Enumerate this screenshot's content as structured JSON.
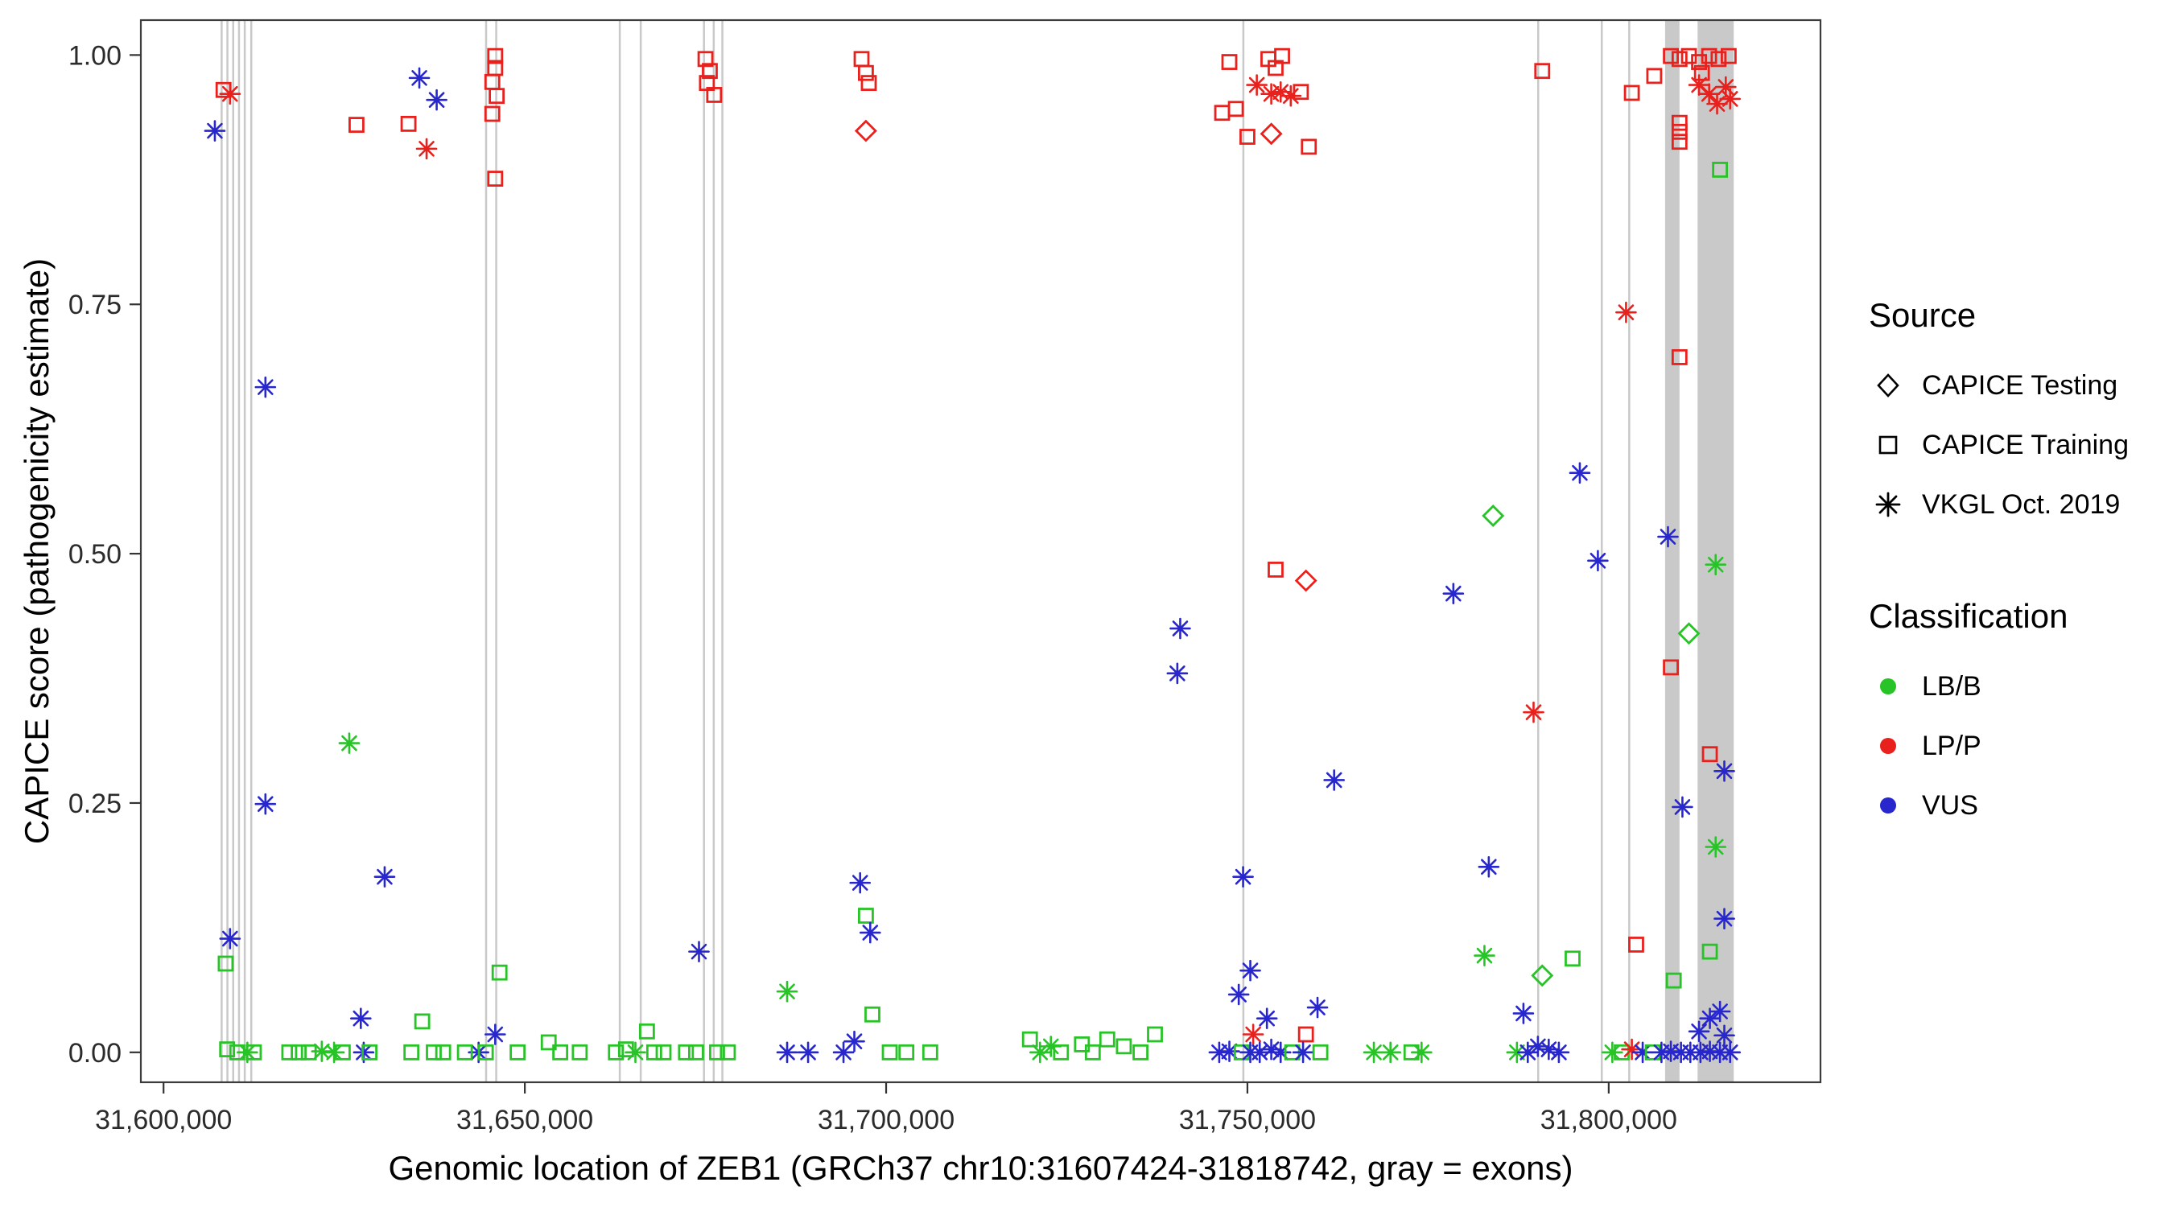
{
  "figure": {
    "xlabel": "Genomic location of ZEB1 (GRCh37 chr10:31607424-31818742, gray = exons)",
    "ylabel": "CAPICE score (pathogenicity estimate)"
  },
  "legend": {
    "source": {
      "title": "Source",
      "items": [
        {
          "label": "CAPICE Testing",
          "marker": "diamond"
        },
        {
          "label": "CAPICE Training",
          "marker": "square"
        },
        {
          "label": "VKGL Oct. 2019",
          "marker": "asterisk"
        }
      ]
    },
    "classification": {
      "title": "Classification",
      "items": [
        {
          "label": "LB/B",
          "color": "#27c327"
        },
        {
          "label": "LP/P",
          "color": "#e8211d"
        },
        {
          "label": "VUS",
          "color": "#2727cd"
        }
      ]
    }
  },
  "chart_data": {
    "type": "scatter",
    "title": "",
    "xlabel": "Genomic location of ZEB1 (GRCh37 chr10:31607424-31818742, gray = exons)",
    "ylabel": "CAPICE score (pathogenicity estimate)",
    "xlim": [
      31596858,
      31829308
    ],
    "ylim": [
      -0.03,
      1.035
    ],
    "grid": false,
    "legend_position": "right",
    "x_ticks": [
      {
        "value": 31600000,
        "label": "31,600,000"
      },
      {
        "value": 31650000,
        "label": "31,650,000"
      },
      {
        "value": 31700000,
        "label": "31,700,000"
      },
      {
        "value": 31750000,
        "label": "31,750,000"
      },
      {
        "value": 31800000,
        "label": "31,800,000"
      }
    ],
    "y_ticks": [
      {
        "value": 0.0,
        "label": "0.00"
      },
      {
        "value": 0.25,
        "label": "0.25"
      },
      {
        "value": 0.5,
        "label": "0.50"
      },
      {
        "value": 0.75,
        "label": "0.75"
      },
      {
        "value": 1.0,
        "label": "1.00"
      }
    ],
    "exon_color": "#bcbcbc",
    "exons": [
      [
        31607900,
        31608060
      ],
      [
        31608700,
        31608860
      ],
      [
        31609500,
        31609660
      ],
      [
        31610300,
        31610460
      ],
      [
        31611100,
        31611260
      ],
      [
        31612000,
        31612160
      ],
      [
        31644500,
        31644660
      ],
      [
        31645900,
        31646060
      ],
      [
        31663000,
        31663160
      ],
      [
        31665900,
        31666060
      ],
      [
        31674650,
        31674810
      ],
      [
        31676000,
        31676160
      ],
      [
        31677200,
        31677360
      ],
      [
        31749300,
        31749460
      ],
      [
        31790100,
        31790260
      ],
      [
        31798900,
        31799060
      ],
      [
        31802700,
        31802860
      ],
      [
        31807800,
        31809800
      ],
      [
        31812300,
        31817300
      ]
    ],
    "source_codes": {
      "T": "CAPICE Testing",
      "R": "CAPICE Training",
      "V": "VKGL Oct. 2019"
    },
    "shape_by_source": {
      "T": "diamond",
      "R": "square",
      "V": "asterisk"
    },
    "class_codes": {
      "B": "LB/B",
      "P": "LP/P",
      "U": "VUS"
    },
    "class_colors": {
      "B": "#27c327",
      "P": "#e8211d",
      "U": "#2727cd"
    },
    "points": [
      [
        31607100,
        0.924,
        "V",
        "U"
      ],
      [
        31608300,
        0.965,
        "R",
        "P"
      ],
      [
        31609200,
        0.961,
        "V",
        "P"
      ],
      [
        31614100,
        0.667,
        "V",
        "U"
      ],
      [
        31614100,
        0.249,
        "V",
        "U"
      ],
      [
        31609200,
        0.114,
        "V",
        "U"
      ],
      [
        31608600,
        0.089,
        "R",
        "B"
      ],
      [
        31608800,
        0.003,
        "R",
        "B"
      ],
      [
        31610200,
        0.0,
        "R",
        "B"
      ],
      [
        31611600,
        0.0,
        "V",
        "B"
      ],
      [
        31612500,
        0.0,
        "R",
        "B"
      ],
      [
        31617400,
        0.0,
        "R",
        "B"
      ],
      [
        31618700,
        0.0,
        "R",
        "B"
      ],
      [
        31620100,
        0.0,
        "R",
        "B"
      ],
      [
        31621900,
        0.001,
        "V",
        "B"
      ],
      [
        31623600,
        0.0,
        "V",
        "B"
      ],
      [
        31624800,
        0.0,
        "R",
        "B"
      ],
      [
        31625700,
        0.31,
        "V",
        "B"
      ],
      [
        31626700,
        0.93,
        "R",
        "P"
      ],
      [
        31627300,
        0.034,
        "V",
        "U"
      ],
      [
        31627700,
        0.0,
        "V",
        "U"
      ],
      [
        31628500,
        0.0,
        "R",
        "B"
      ],
      [
        31630600,
        0.176,
        "V",
        "U"
      ],
      [
        31633900,
        0.931,
        "R",
        "P"
      ],
      [
        31635400,
        0.977,
        "V",
        "U"
      ],
      [
        31637800,
        0.955,
        "V",
        "U"
      ],
      [
        31636400,
        0.906,
        "V",
        "P"
      ],
      [
        31635800,
        0.031,
        "R",
        "B"
      ],
      [
        31634300,
        0.0,
        "R",
        "B"
      ],
      [
        31637400,
        0.0,
        "R",
        "B"
      ],
      [
        31638700,
        0.0,
        "R",
        "B"
      ],
      [
        31645900,
        0.999,
        "R",
        "P"
      ],
      [
        31645900,
        0.987,
        "R",
        "P"
      ],
      [
        31645500,
        0.973,
        "R",
        "P"
      ],
      [
        31646100,
        0.959,
        "R",
        "P"
      ],
      [
        31645500,
        0.941,
        "R",
        "P"
      ],
      [
        31645900,
        0.876,
        "R",
        "P"
      ],
      [
        31646500,
        0.08,
        "R",
        "B"
      ],
      [
        31645900,
        0.018,
        "V",
        "U"
      ],
      [
        31643600,
        0.0,
        "V",
        "U"
      ],
      [
        31641700,
        0.0,
        "R",
        "B"
      ],
      [
        31644600,
        0.0,
        "R",
        "B"
      ],
      [
        31649000,
        0.0,
        "R",
        "B"
      ],
      [
        31653300,
        0.01,
        "R",
        "B"
      ],
      [
        31654900,
        0.0,
        "R",
        "B"
      ],
      [
        31657600,
        0.0,
        "R",
        "B"
      ],
      [
        31662600,
        0.0,
        "R",
        "B"
      ],
      [
        31664000,
        0.003,
        "R",
        "B"
      ],
      [
        31665300,
        0.0,
        "V",
        "B"
      ],
      [
        31666900,
        0.021,
        "R",
        "B"
      ],
      [
        31667900,
        0.0,
        "R",
        "B"
      ],
      [
        31669200,
        0.0,
        "R",
        "B"
      ],
      [
        31675000,
        0.996,
        "R",
        "P"
      ],
      [
        31675600,
        0.984,
        "R",
        "P"
      ],
      [
        31675200,
        0.972,
        "R",
        "P"
      ],
      [
        31676200,
        0.96,
        "R",
        "P"
      ],
      [
        31674100,
        0.101,
        "V",
        "U"
      ],
      [
        31672300,
        0.0,
        "R",
        "B"
      ],
      [
        31673700,
        0.0,
        "R",
        "B"
      ],
      [
        31676600,
        0.0,
        "R",
        "B"
      ],
      [
        31678100,
        0.0,
        "R",
        "B"
      ],
      [
        31686300,
        0.061,
        "V",
        "B"
      ],
      [
        31686300,
        0.0,
        "V",
        "U"
      ],
      [
        31689200,
        0.0,
        "V",
        "U"
      ],
      [
        31696600,
        0.996,
        "R",
        "P"
      ],
      [
        31697200,
        0.982,
        "R",
        "P"
      ],
      [
        31697600,
        0.972,
        "R",
        "P"
      ],
      [
        31697200,
        0.924,
        "T",
        "P"
      ],
      [
        31696400,
        0.17,
        "V",
        "U"
      ],
      [
        31697200,
        0.137,
        "R",
        "B"
      ],
      [
        31697800,
        0.12,
        "V",
        "U"
      ],
      [
        31698100,
        0.038,
        "R",
        "B"
      ],
      [
        31695600,
        0.011,
        "V",
        "U"
      ],
      [
        31694100,
        0.0,
        "V",
        "U"
      ],
      [
        31700500,
        0.0,
        "R",
        "B"
      ],
      [
        31702800,
        0.0,
        "R",
        "B"
      ],
      [
        31706100,
        0.0,
        "R",
        "B"
      ],
      [
        31719900,
        0.013,
        "R",
        "B"
      ],
      [
        31721300,
        0.0,
        "V",
        "B"
      ],
      [
        31722800,
        0.006,
        "V",
        "B"
      ],
      [
        31724200,
        0.0,
        "R",
        "B"
      ],
      [
        31727100,
        0.008,
        "R",
        "B"
      ],
      [
        31728600,
        0.0,
        "R",
        "B"
      ],
      [
        31730600,
        0.013,
        "R",
        "B"
      ],
      [
        31732900,
        0.006,
        "R",
        "B"
      ],
      [
        31735200,
        0.0,
        "R",
        "B"
      ],
      [
        31737200,
        0.018,
        "R",
        "B"
      ],
      [
        31747500,
        0.993,
        "R",
        "P"
      ],
      [
        31752900,
        0.996,
        "R",
        "P"
      ],
      [
        31753900,
        0.987,
        "R",
        "P"
      ],
      [
        31754800,
        0.999,
        "R",
        "P"
      ],
      [
        31751300,
        0.97,
        "V",
        "P"
      ],
      [
        31753300,
        0.961,
        "V",
        "P"
      ],
      [
        31754600,
        0.963,
        "V",
        "P"
      ],
      [
        31756000,
        0.959,
        "V",
        "P"
      ],
      [
        31757400,
        0.963,
        "R",
        "P"
      ],
      [
        31746500,
        0.942,
        "R",
        "P"
      ],
      [
        31748400,
        0.946,
        "R",
        "P"
      ],
      [
        31750000,
        0.918,
        "R",
        "P"
      ],
      [
        31753300,
        0.921,
        "T",
        "P"
      ],
      [
        31758500,
        0.908,
        "R",
        "P"
      ],
      [
        31753900,
        0.484,
        "R",
        "P"
      ],
      [
        31758100,
        0.473,
        "T",
        "P"
      ],
      [
        31740700,
        0.425,
        "V",
        "U"
      ],
      [
        31740300,
        0.38,
        "V",
        "U"
      ],
      [
        31762000,
        0.273,
        "V",
        "U"
      ],
      [
        31749400,
        0.176,
        "V",
        "U"
      ],
      [
        31750400,
        0.082,
        "V",
        "U"
      ],
      [
        31748800,
        0.058,
        "V",
        "U"
      ],
      [
        31759700,
        0.045,
        "V",
        "U"
      ],
      [
        31752700,
        0.034,
        "V",
        "U"
      ],
      [
        31750800,
        0.018,
        "V",
        "P"
      ],
      [
        31758100,
        0.018,
        "R",
        "P"
      ],
      [
        31746100,
        0.0,
        "V",
        "U"
      ],
      [
        31747500,
        0.001,
        "V",
        "U"
      ],
      [
        31749200,
        0.0,
        "R",
        "B"
      ],
      [
        31750400,
        0.0,
        "V",
        "U"
      ],
      [
        31751700,
        0.0,
        "V",
        "U"
      ],
      [
        31753300,
        0.003,
        "V",
        "U"
      ],
      [
        31754600,
        0.0,
        "V",
        "U"
      ],
      [
        31756200,
        0.0,
        "R",
        "B"
      ],
      [
        31757700,
        0.0,
        "V",
        "U"
      ],
      [
        31760100,
        0.0,
        "R",
        "B"
      ],
      [
        31767500,
        0.0,
        "V",
        "B"
      ],
      [
        31769800,
        0.0,
        "V",
        "B"
      ],
      [
        31772700,
        0.0,
        "R",
        "B"
      ],
      [
        31774100,
        0.0,
        "V",
        "B"
      ],
      [
        31778500,
        0.46,
        "V",
        "U"
      ],
      [
        31784000,
        0.538,
        "T",
        "B"
      ],
      [
        31782800,
        0.097,
        "V",
        "B"
      ],
      [
        31783400,
        0.186,
        "V",
        "U"
      ],
      [
        31787300,
        0.0,
        "V",
        "B"
      ],
      [
        31788200,
        0.039,
        "V",
        "U"
      ],
      [
        31788800,
        0.0,
        "V",
        "U"
      ],
      [
        31789600,
        0.341,
        "V",
        "P"
      ],
      [
        31790200,
        0.006,
        "V",
        "U"
      ],
      [
        31790800,
        0.984,
        "R",
        "P"
      ],
      [
        31790800,
        0.077,
        "T",
        "B"
      ],
      [
        31791700,
        0.003,
        "V",
        "U"
      ],
      [
        31793100,
        0.0,
        "V",
        "U"
      ],
      [
        31795000,
        0.094,
        "R",
        "B"
      ],
      [
        31796000,
        0.581,
        "V",
        "U"
      ],
      [
        31798500,
        0.493,
        "V",
        "U"
      ],
      [
        31803200,
        0.962,
        "R",
        "P"
      ],
      [
        31806300,
        0.979,
        "R",
        "P"
      ],
      [
        31808600,
        0.999,
        "R",
        "P"
      ],
      [
        31809800,
        0.996,
        "R",
        "P"
      ],
      [
        31811100,
        0.999,
        "R",
        "P"
      ],
      [
        31812500,
        0.993,
        "R",
        "P"
      ],
      [
        31813900,
        0.999,
        "R",
        "P"
      ],
      [
        31815200,
        0.996,
        "R",
        "P"
      ],
      [
        31816600,
        0.999,
        "R",
        "P"
      ],
      [
        31809800,
        0.932,
        "R",
        "P"
      ],
      [
        31809800,
        0.923,
        "R",
        "P"
      ],
      [
        31809800,
        0.913,
        "R",
        "P"
      ],
      [
        31812500,
        0.97,
        "V",
        "P"
      ],
      [
        31813900,
        0.961,
        "V",
        "P"
      ],
      [
        31815000,
        0.951,
        "V",
        "P"
      ],
      [
        31816200,
        0.968,
        "V",
        "P"
      ],
      [
        31816800,
        0.956,
        "V",
        "P"
      ],
      [
        31812900,
        0.982,
        "R",
        "P"
      ],
      [
        31815400,
        0.885,
        "R",
        "B"
      ],
      [
        31802400,
        0.742,
        "V",
        "P"
      ],
      [
        31809800,
        0.697,
        "R",
        "P"
      ],
      [
        31808200,
        0.517,
        "V",
        "U"
      ],
      [
        31814800,
        0.489,
        "V",
        "B"
      ],
      [
        31811100,
        0.42,
        "T",
        "B"
      ],
      [
        31808600,
        0.386,
        "R",
        "P"
      ],
      [
        31814000,
        0.299,
        "R",
        "P"
      ],
      [
        31816000,
        0.282,
        "V",
        "U"
      ],
      [
        31810200,
        0.246,
        "V",
        "U"
      ],
      [
        31814800,
        0.206,
        "V",
        "B"
      ],
      [
        31816000,
        0.134,
        "V",
        "U"
      ],
      [
        31814000,
        0.101,
        "R",
        "B"
      ],
      [
        31803800,
        0.108,
        "R",
        "P"
      ],
      [
        31809000,
        0.072,
        "R",
        "B"
      ],
      [
        31815400,
        0.041,
        "V",
        "U"
      ],
      [
        31814000,
        0.034,
        "V",
        "U"
      ],
      [
        31800500,
        0.0,
        "V",
        "B"
      ],
      [
        31801800,
        0.0,
        "R",
        "B"
      ],
      [
        31803200,
        0.003,
        "V",
        "P"
      ],
      [
        31804700,
        0.0,
        "V",
        "U"
      ],
      [
        31806100,
        0.0,
        "R",
        "B"
      ],
      [
        31807300,
        0.0,
        "V",
        "U"
      ],
      [
        31808600,
        0.001,
        "V",
        "U"
      ],
      [
        31810000,
        0.0,
        "V",
        "U"
      ],
      [
        31811300,
        0.0,
        "V",
        "U"
      ],
      [
        31812700,
        0.0,
        "V",
        "U"
      ],
      [
        31814000,
        0.001,
        "V",
        "U"
      ],
      [
        31815400,
        0.0,
        "V",
        "U"
      ],
      [
        31816800,
        0.0,
        "V",
        "U"
      ],
      [
        31812500,
        0.021,
        "V",
        "U"
      ],
      [
        31816000,
        0.017,
        "V",
        "U"
      ]
    ]
  }
}
